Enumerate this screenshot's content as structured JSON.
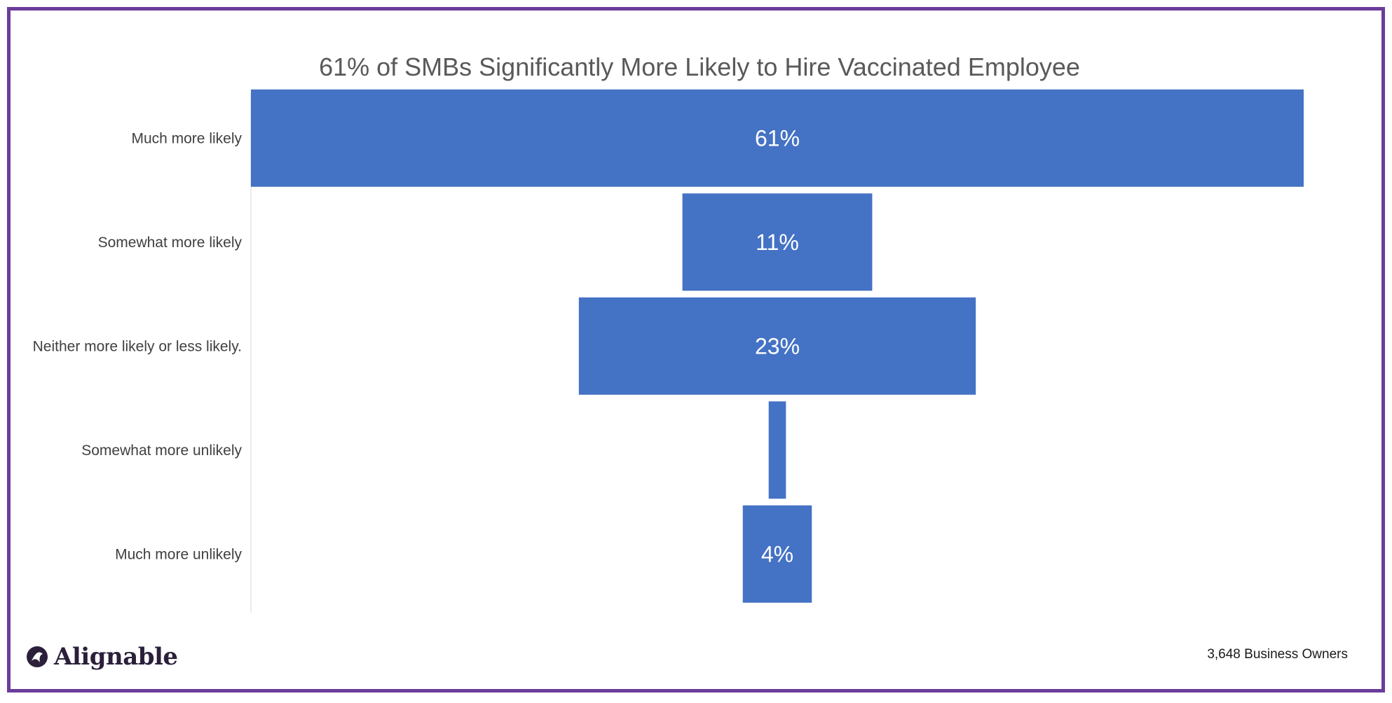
{
  "chart_data": {
    "type": "bar",
    "style": "funnel",
    "title": "61% of SMBs Significantly More Likely to Hire Vaccinated Employee",
    "categories": [
      "Much more likely",
      "Somewhat more likely",
      "Neither more likely or less likely.",
      "Somewhat more unlikely",
      "Much more unlikely"
    ],
    "values": [
      61,
      11,
      23,
      1,
      4
    ],
    "value_labels": [
      "61%",
      "11%",
      "23%",
      "",
      "4%"
    ],
    "xlim": [
      0,
      61
    ],
    "bar_color": "#4472C4",
    "grid": false,
    "legend": "none"
  },
  "footer": {
    "note": "3,648 Business Owners",
    "brand": "Alignable",
    "brand_color": "#2b1f3a",
    "border_color": "#6a3d9a"
  }
}
